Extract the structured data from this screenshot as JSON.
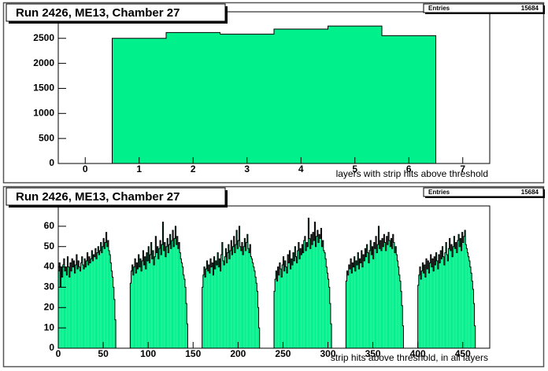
{
  "chart_data": [
    {
      "type": "histogram",
      "title": "Run 2426, ME13, Chamber 27",
      "stats_label": "Entries",
      "stats_value": 15684,
      "x_label": "layers with strip hits above threshold",
      "color": "#00f08c",
      "bins": [
        0.5,
        1.5,
        2.5,
        3.5,
        4.5,
        5.5,
        6.5
      ],
      "values": [
        2500,
        2615,
        2585,
        2685,
        2745,
        2554
      ],
      "xlim": [
        -0.5,
        7.5
      ],
      "ylim": [
        0,
        3030
      ],
      "xticks": [
        0,
        1,
        2,
        3,
        4,
        5,
        6,
        7
      ],
      "yticks": [
        0,
        500,
        1000,
        1500,
        2000,
        2500
      ]
    },
    {
      "type": "histogram",
      "title": "Run 2426, ME13, Chamber 27",
      "stats_label": "Entries",
      "stats_value": 15684,
      "x_label": "strip hits above threshold, in all layers",
      "color": "#00f08c",
      "bins": [
        0,
        1,
        2,
        3,
        4,
        5,
        6,
        7,
        8,
        9,
        10,
        11,
        12,
        13,
        14,
        15,
        16,
        17,
        18,
        19,
        20,
        21,
        22,
        23,
        24,
        25,
        26,
        27,
        28,
        29,
        30,
        31,
        32,
        33,
        34,
        35,
        36,
        37,
        38,
        39,
        40,
        41,
        42,
        43,
        44,
        45,
        46,
        47,
        48,
        49,
        50,
        51,
        52,
        53,
        54,
        55,
        56,
        57,
        58,
        59,
        60,
        61,
        62,
        63,
        64,
        65,
        66,
        67,
        68,
        69,
        70,
        71,
        72,
        73,
        74,
        75,
        76,
        77,
        78,
        79,
        80,
        81,
        82,
        83,
        84,
        85,
        86,
        87,
        88,
        89,
        90,
        91,
        92,
        93,
        94,
        95,
        96,
        97,
        98,
        99,
        100,
        101,
        102,
        103,
        104,
        105,
        106,
        107,
        108,
        109,
        110,
        111,
        112,
        113,
        114,
        115,
        116,
        117,
        118,
        119,
        120,
        121,
        122,
        123,
        124,
        125,
        126,
        127,
        128,
        129,
        130,
        131,
        132,
        133,
        134,
        135,
        136,
        137,
        138,
        139,
        140,
        141,
        142,
        143,
        144,
        145,
        146,
        147,
        148,
        149,
        150,
        151,
        152,
        153,
        154,
        155,
        156,
        157,
        158,
        159,
        160,
        161,
        162,
        163,
        164,
        165,
        166,
        167,
        168,
        169,
        170,
        171,
        172,
        173,
        174,
        175,
        176,
        177,
        178,
        179,
        180,
        181,
        182,
        183,
        184,
        185,
        186,
        187,
        188,
        189,
        190,
        191,
        192,
        193,
        194,
        195,
        196,
        197,
        198,
        199,
        200,
        201,
        202,
        203,
        204,
        205,
        206,
        207,
        208,
        209,
        210,
        211,
        212,
        213,
        214,
        215,
        216,
        217,
        218,
        219,
        220,
        221,
        222,
        223,
        224,
        225,
        226,
        227,
        228,
        229,
        230,
        231,
        232,
        233,
        234,
        235,
        236,
        237,
        238,
        239,
        240,
        241,
        242,
        243,
        244,
        245,
        246,
        247,
        248,
        249,
        250,
        251,
        252,
        253,
        254,
        255,
        256,
        257,
        258,
        259,
        260,
        261,
        262,
        263,
        264,
        265,
        266,
        267,
        268,
        269,
        270,
        271,
        272,
        273,
        274,
        275,
        276,
        277,
        278,
        279,
        280,
        281,
        282,
        283,
        284,
        285,
        286,
        287,
        288,
        289,
        290,
        291,
        292,
        293,
        294,
        295,
        296,
        297,
        298,
        299,
        300,
        301,
        302,
        303,
        304,
        305,
        306,
        307,
        308,
        309,
        310,
        311,
        312,
        313,
        314,
        315,
        316,
        317,
        318,
        319,
        320,
        321,
        322,
        323,
        324,
        325,
        326,
        327,
        328,
        329,
        330,
        331,
        332,
        333,
        334,
        335,
        336,
        337,
        338,
        339,
        340,
        341,
        342,
        343,
        344,
        345,
        346,
        347,
        348,
        349,
        350,
        351,
        352,
        353,
        354,
        355,
        356,
        357,
        358,
        359,
        360,
        361,
        362,
        363,
        364,
        365,
        366,
        367,
        368,
        369,
        370,
        371,
        372,
        373,
        374,
        375,
        376,
        377,
        378,
        379,
        380,
        381,
        382,
        383,
        384,
        385,
        386,
        387,
        388,
        389,
        390,
        391,
        392,
        393,
        394,
        395,
        396,
        397,
        398,
        399,
        400,
        401,
        402,
        403,
        404,
        405,
        406,
        407,
        408,
        409,
        410,
        411,
        412,
        413,
        414,
        415,
        416,
        417,
        418,
        419,
        420,
        421,
        422,
        423,
        424,
        425,
        426,
        427,
        428,
        429,
        430,
        431,
        432,
        433,
        434,
        435,
        436,
        437,
        438,
        439,
        440,
        441,
        442,
        443,
        444,
        445,
        446,
        447,
        448,
        449,
        450,
        451,
        452,
        453,
        454,
        455,
        456,
        457,
        458,
        459,
        460,
        461,
        462,
        463,
        464,
        465,
        466,
        467,
        468,
        469,
        470,
        471,
        472,
        473,
        474,
        475,
        476,
        477,
        478,
        479,
        480
      ],
      "values": [
        38,
        42,
        30,
        40,
        35,
        41,
        44,
        38,
        40,
        36,
        45,
        40,
        35,
        42,
        38,
        44,
        40,
        43,
        37,
        41,
        46,
        39,
        43,
        40,
        38,
        42,
        45,
        41,
        39,
        44,
        40,
        43,
        47,
        41,
        45,
        42,
        44,
        48,
        43,
        46,
        45,
        49,
        44,
        47,
        50,
        46,
        48,
        52,
        47,
        50,
        54,
        49,
        52,
        57,
        50,
        53,
        48,
        46,
        42,
        38,
        35,
        30,
        24,
        14,
        0,
        0,
        0,
        0,
        0,
        0,
        0,
        0,
        0,
        0,
        0,
        0,
        0,
        0,
        0,
        0,
        32,
        38,
        41,
        36,
        40,
        44,
        37,
        42,
        39,
        46,
        40,
        44,
        38,
        43,
        48,
        41,
        45,
        39,
        47,
        43,
        50,
        42,
        46,
        52,
        44,
        48,
        41,
        45,
        55,
        47,
        50,
        44,
        49,
        53,
        46,
        51,
        62,
        48,
        52,
        45,
        50,
        54,
        47,
        51,
        56,
        49,
        53,
        58,
        50,
        54,
        60,
        51,
        55,
        49,
        52,
        47,
        44,
        42,
        40,
        36,
        34,
        30,
        22,
        12,
        0,
        0,
        0,
        0,
        0,
        0,
        0,
        0,
        0,
        0,
        0,
        0,
        0,
        0,
        0,
        0,
        30,
        36,
        40,
        35,
        39,
        43,
        38,
        41,
        37,
        44,
        40,
        42,
        36,
        45,
        39,
        43,
        41,
        47,
        40,
        44,
        38,
        46,
        52,
        43,
        41,
        45,
        49,
        42,
        47,
        51,
        44,
        48,
        53,
        46,
        50,
        55,
        47,
        51,
        58,
        49,
        53,
        60,
        50,
        48,
        52,
        46,
        50,
        54,
        48,
        52,
        56,
        49,
        47,
        51,
        45,
        44,
        42,
        40,
        38,
        35,
        32,
        28,
        20,
        10,
        0,
        0,
        0,
        0,
        0,
        0,
        0,
        0,
        0,
        0,
        0,
        0,
        0,
        0,
        0,
        0,
        28,
        34,
        38,
        33,
        40,
        36,
        42,
        39,
        35,
        41,
        45,
        38,
        43,
        40,
        37,
        46,
        42,
        48,
        39,
        44,
        41,
        47,
        43,
        50,
        45,
        42,
        48,
        52,
        44,
        49,
        46,
        51,
        47,
        53,
        55,
        48,
        52,
        50,
        64,
        54,
        49,
        56,
        51,
        57,
        53,
        62,
        50,
        55,
        58,
        52,
        56,
        54,
        59,
        50,
        53,
        48,
        47,
        44,
        40,
        37,
        34,
        30,
        22,
        12,
        0,
        0,
        0,
        0,
        0,
        0,
        0,
        0,
        0,
        0,
        0,
        0,
        0,
        0,
        0,
        0,
        33,
        38,
        36,
        41,
        39,
        44,
        37,
        42,
        40,
        45,
        38,
        43,
        41,
        47,
        39,
        44,
        42,
        48,
        40,
        46,
        43,
        49,
        45,
        51,
        47,
        42,
        48,
        53,
        46,
        50,
        44,
        52,
        49,
        55,
        47,
        51,
        60,
        49,
        53,
        48,
        54,
        50,
        56,
        52,
        48,
        55,
        51,
        57,
        53,
        50,
        54,
        49,
        56,
        52,
        47,
        50,
        46,
        43,
        40,
        36,
        33,
        28,
        21,
        11,
        0,
        0,
        0,
        0,
        0,
        0,
        0,
        0,
        0,
        0,
        0,
        0,
        0,
        0,
        0,
        0,
        31,
        36,
        40,
        34,
        38,
        42,
        37,
        41,
        35,
        44,
        39,
        43,
        37,
        42,
        46,
        40,
        44,
        38,
        45,
        41,
        47,
        43,
        39,
        46,
        42,
        48,
        44,
        50,
        45,
        41,
        47,
        52,
        46,
        43,
        49,
        54,
        48,
        51,
        45,
        50,
        55,
        49,
        52,
        47,
        53,
        56,
        50,
        54,
        48,
        57,
        52,
        55,
        58,
        51,
        49,
        47,
        45,
        43,
        40,
        37,
        33,
        29,
        22,
        11,
        0,
        0,
        0,
        0,
        0,
        0,
        0,
        0,
        0,
        0,
        0,
        0,
        0,
        0,
        0,
        0
      ],
      "xlim": [
        0,
        480
      ],
      "ylim": [
        0,
        70
      ],
      "xticks": [
        0,
        50,
        100,
        150,
        200,
        250,
        300,
        350,
        400,
        450
      ],
      "yticks": [
        0,
        10,
        20,
        30,
        40,
        50,
        60
      ]
    }
  ]
}
